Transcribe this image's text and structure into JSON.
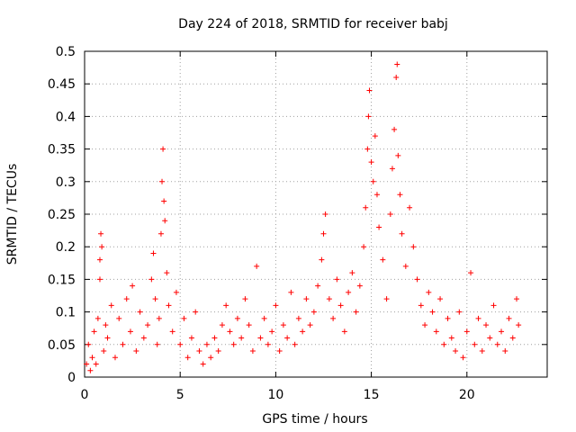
{
  "chart_data": {
    "type": "scatter",
    "title": "Day 224 of 2018, SRMTID for receiver babj",
    "xlabel": "GPS time / hours",
    "ylabel": "SRMTID / TECUs",
    "xlim": [
      0,
      24.2
    ],
    "ylim": [
      0,
      0.5
    ],
    "x_ticks": [
      0,
      5,
      10,
      15,
      20
    ],
    "y_ticks": [
      0,
      0.05,
      0.1,
      0.15,
      0.2,
      0.25,
      0.3,
      0.35,
      0.4,
      0.45,
      0.5
    ],
    "x_tick_labels": [
      "0",
      "5",
      "10",
      "15",
      "20"
    ],
    "y_tick_labels": [
      "0",
      "0.05",
      "0.1",
      "0.15",
      "0.2",
      "0.25",
      "0.3",
      "0.35",
      "0.4",
      "0.45",
      "0.5"
    ],
    "grid": true,
    "marker": "+",
    "color": "#ff0000",
    "series": [
      {
        "name": "SRMTID",
        "points": [
          [
            0.1,
            0.02
          ],
          [
            0.2,
            0.05
          ],
          [
            0.3,
            0.01
          ],
          [
            0.4,
            0.03
          ],
          [
            0.5,
            0.07
          ],
          [
            0.6,
            0.02
          ],
          [
            0.7,
            0.09
          ],
          [
            0.8,
            0.15
          ],
          [
            0.8,
            0.18
          ],
          [
            0.85,
            0.22
          ],
          [
            0.9,
            0.2
          ],
          [
            1.0,
            0.04
          ],
          [
            1.1,
            0.08
          ],
          [
            1.2,
            0.06
          ],
          [
            1.4,
            0.11
          ],
          [
            1.6,
            0.03
          ],
          [
            1.8,
            0.09
          ],
          [
            2.0,
            0.05
          ],
          [
            2.2,
            0.12
          ],
          [
            2.4,
            0.07
          ],
          [
            2.5,
            0.14
          ],
          [
            2.7,
            0.04
          ],
          [
            2.9,
            0.1
          ],
          [
            3.1,
            0.06
          ],
          [
            3.3,
            0.08
          ],
          [
            3.5,
            0.15
          ],
          [
            3.6,
            0.19
          ],
          [
            3.7,
            0.12
          ],
          [
            3.8,
            0.05
          ],
          [
            3.9,
            0.09
          ],
          [
            4.0,
            0.22
          ],
          [
            4.05,
            0.3
          ],
          [
            4.1,
            0.35
          ],
          [
            4.15,
            0.27
          ],
          [
            4.2,
            0.24
          ],
          [
            4.3,
            0.16
          ],
          [
            4.4,
            0.11
          ],
          [
            4.6,
            0.07
          ],
          [
            4.8,
            0.13
          ],
          [
            5.0,
            0.05
          ],
          [
            5.2,
            0.09
          ],
          [
            5.4,
            0.03
          ],
          [
            5.6,
            0.06
          ],
          [
            5.8,
            0.1
          ],
          [
            6.0,
            0.04
          ],
          [
            6.2,
            0.02
          ],
          [
            6.4,
            0.05
          ],
          [
            6.6,
            0.03
          ],
          [
            6.8,
            0.06
          ],
          [
            7.0,
            0.04
          ],
          [
            7.2,
            0.08
          ],
          [
            7.4,
            0.11
          ],
          [
            7.6,
            0.07
          ],
          [
            7.8,
            0.05
          ],
          [
            8.0,
            0.09
          ],
          [
            8.2,
            0.06
          ],
          [
            8.4,
            0.12
          ],
          [
            8.6,
            0.08
          ],
          [
            8.8,
            0.04
          ],
          [
            9.0,
            0.17
          ],
          [
            9.2,
            0.06
          ],
          [
            9.4,
            0.09
          ],
          [
            9.6,
            0.05
          ],
          [
            9.8,
            0.07
          ],
          [
            10.0,
            0.11
          ],
          [
            10.2,
            0.04
          ],
          [
            10.4,
            0.08
          ],
          [
            10.6,
            0.06
          ],
          [
            10.8,
            0.13
          ],
          [
            11.0,
            0.05
          ],
          [
            11.2,
            0.09
          ],
          [
            11.4,
            0.07
          ],
          [
            11.6,
            0.12
          ],
          [
            11.8,
            0.08
          ],
          [
            12.0,
            0.1
          ],
          [
            12.2,
            0.14
          ],
          [
            12.4,
            0.18
          ],
          [
            12.5,
            0.22
          ],
          [
            12.6,
            0.25
          ],
          [
            12.8,
            0.12
          ],
          [
            13.0,
            0.09
          ],
          [
            13.2,
            0.15
          ],
          [
            13.4,
            0.11
          ],
          [
            13.6,
            0.07
          ],
          [
            13.8,
            0.13
          ],
          [
            14.0,
            0.16
          ],
          [
            14.2,
            0.1
          ],
          [
            14.4,
            0.14
          ],
          [
            14.6,
            0.2
          ],
          [
            14.7,
            0.26
          ],
          [
            14.8,
            0.35
          ],
          [
            14.85,
            0.4
          ],
          [
            14.9,
            0.44
          ],
          [
            15.0,
            0.33
          ],
          [
            15.1,
            0.3
          ],
          [
            15.2,
            0.37
          ],
          [
            15.3,
            0.28
          ],
          [
            15.4,
            0.23
          ],
          [
            15.6,
            0.18
          ],
          [
            15.8,
            0.12
          ],
          [
            16.0,
            0.25
          ],
          [
            16.1,
            0.32
          ],
          [
            16.2,
            0.38
          ],
          [
            16.3,
            0.46
          ],
          [
            16.35,
            0.48
          ],
          [
            16.4,
            0.34
          ],
          [
            16.5,
            0.28
          ],
          [
            16.6,
            0.22
          ],
          [
            16.8,
            0.17
          ],
          [
            17.0,
            0.26
          ],
          [
            17.2,
            0.2
          ],
          [
            17.4,
            0.15
          ],
          [
            17.6,
            0.11
          ],
          [
            17.8,
            0.08
          ],
          [
            18.0,
            0.13
          ],
          [
            18.2,
            0.1
          ],
          [
            18.4,
            0.07
          ],
          [
            18.6,
            0.12
          ],
          [
            18.8,
            0.05
          ],
          [
            19.0,
            0.09
          ],
          [
            19.2,
            0.06
          ],
          [
            19.4,
            0.04
          ],
          [
            19.6,
            0.1
          ],
          [
            19.8,
            0.03
          ],
          [
            20.0,
            0.07
          ],
          [
            20.2,
            0.16
          ],
          [
            20.4,
            0.05
          ],
          [
            20.6,
            0.09
          ],
          [
            20.8,
            0.04
          ],
          [
            21.0,
            0.08
          ],
          [
            21.2,
            0.06
          ],
          [
            21.4,
            0.11
          ],
          [
            21.6,
            0.05
          ],
          [
            21.8,
            0.07
          ],
          [
            22.0,
            0.04
          ],
          [
            22.2,
            0.09
          ],
          [
            22.4,
            0.06
          ],
          [
            22.6,
            0.12
          ],
          [
            22.7,
            0.08
          ]
        ]
      }
    ]
  }
}
